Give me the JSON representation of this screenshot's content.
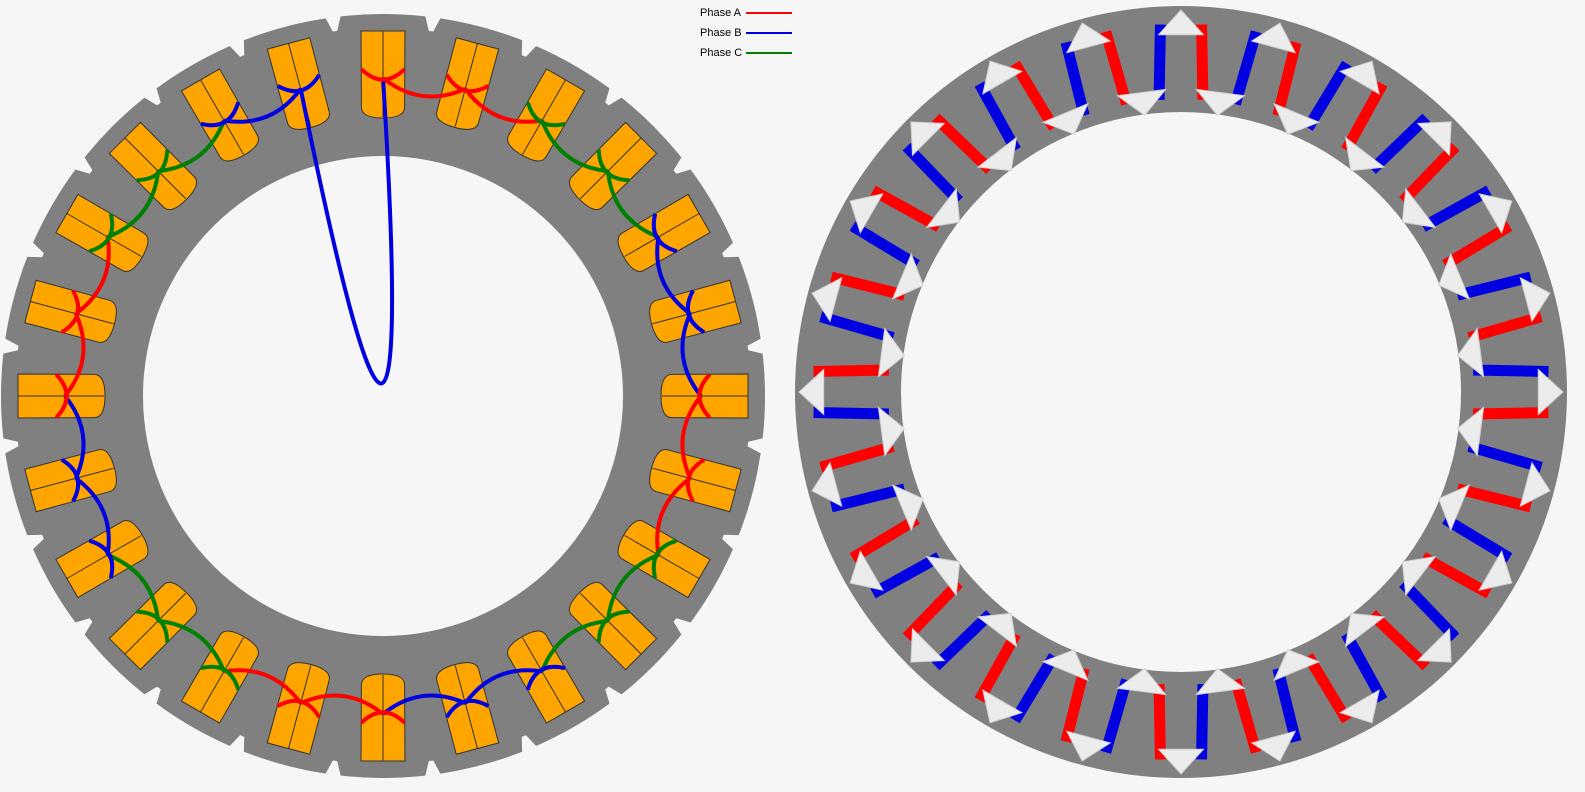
{
  "legend": {
    "phases": [
      {
        "label": "Phase A",
        "color": "#ff0000"
      },
      {
        "label": "Phase B",
        "color": "#0000e0"
      },
      {
        "label": "Phase C",
        "color": "#008000"
      }
    ]
  },
  "colors": {
    "background": "#f6f6f6",
    "core": "#808080",
    "coil": "#ffa500",
    "coil_outline": "#333333",
    "node": "#ececec"
  },
  "stator_slots": 24,
  "phase_sequence": [
    "A",
    "A",
    "C",
    "C",
    "B",
    "B",
    "A",
    "A",
    "C",
    "C",
    "B",
    "B",
    "A",
    "A",
    "C",
    "C",
    "B",
    "B",
    "A",
    "A",
    "C",
    "C",
    "B",
    "B"
  ],
  "winding_diagram": {
    "nodes": 24,
    "edge_phases": [
      "A",
      "B",
      "A",
      "B",
      "A",
      "B",
      "A",
      "B",
      "A",
      "B",
      "A",
      "B",
      "A",
      "B",
      "A",
      "B",
      "A",
      "B",
      "A",
      "B",
      "A",
      "B",
      "A",
      "B",
      "A",
      "B",
      "A",
      "B",
      "A",
      "B",
      "A",
      "B",
      "A",
      "B",
      "A",
      "B",
      "A",
      "B",
      "A",
      "B",
      "A",
      "B",
      "A",
      "B",
      "A",
      "B",
      "A",
      "B"
    ]
  }
}
